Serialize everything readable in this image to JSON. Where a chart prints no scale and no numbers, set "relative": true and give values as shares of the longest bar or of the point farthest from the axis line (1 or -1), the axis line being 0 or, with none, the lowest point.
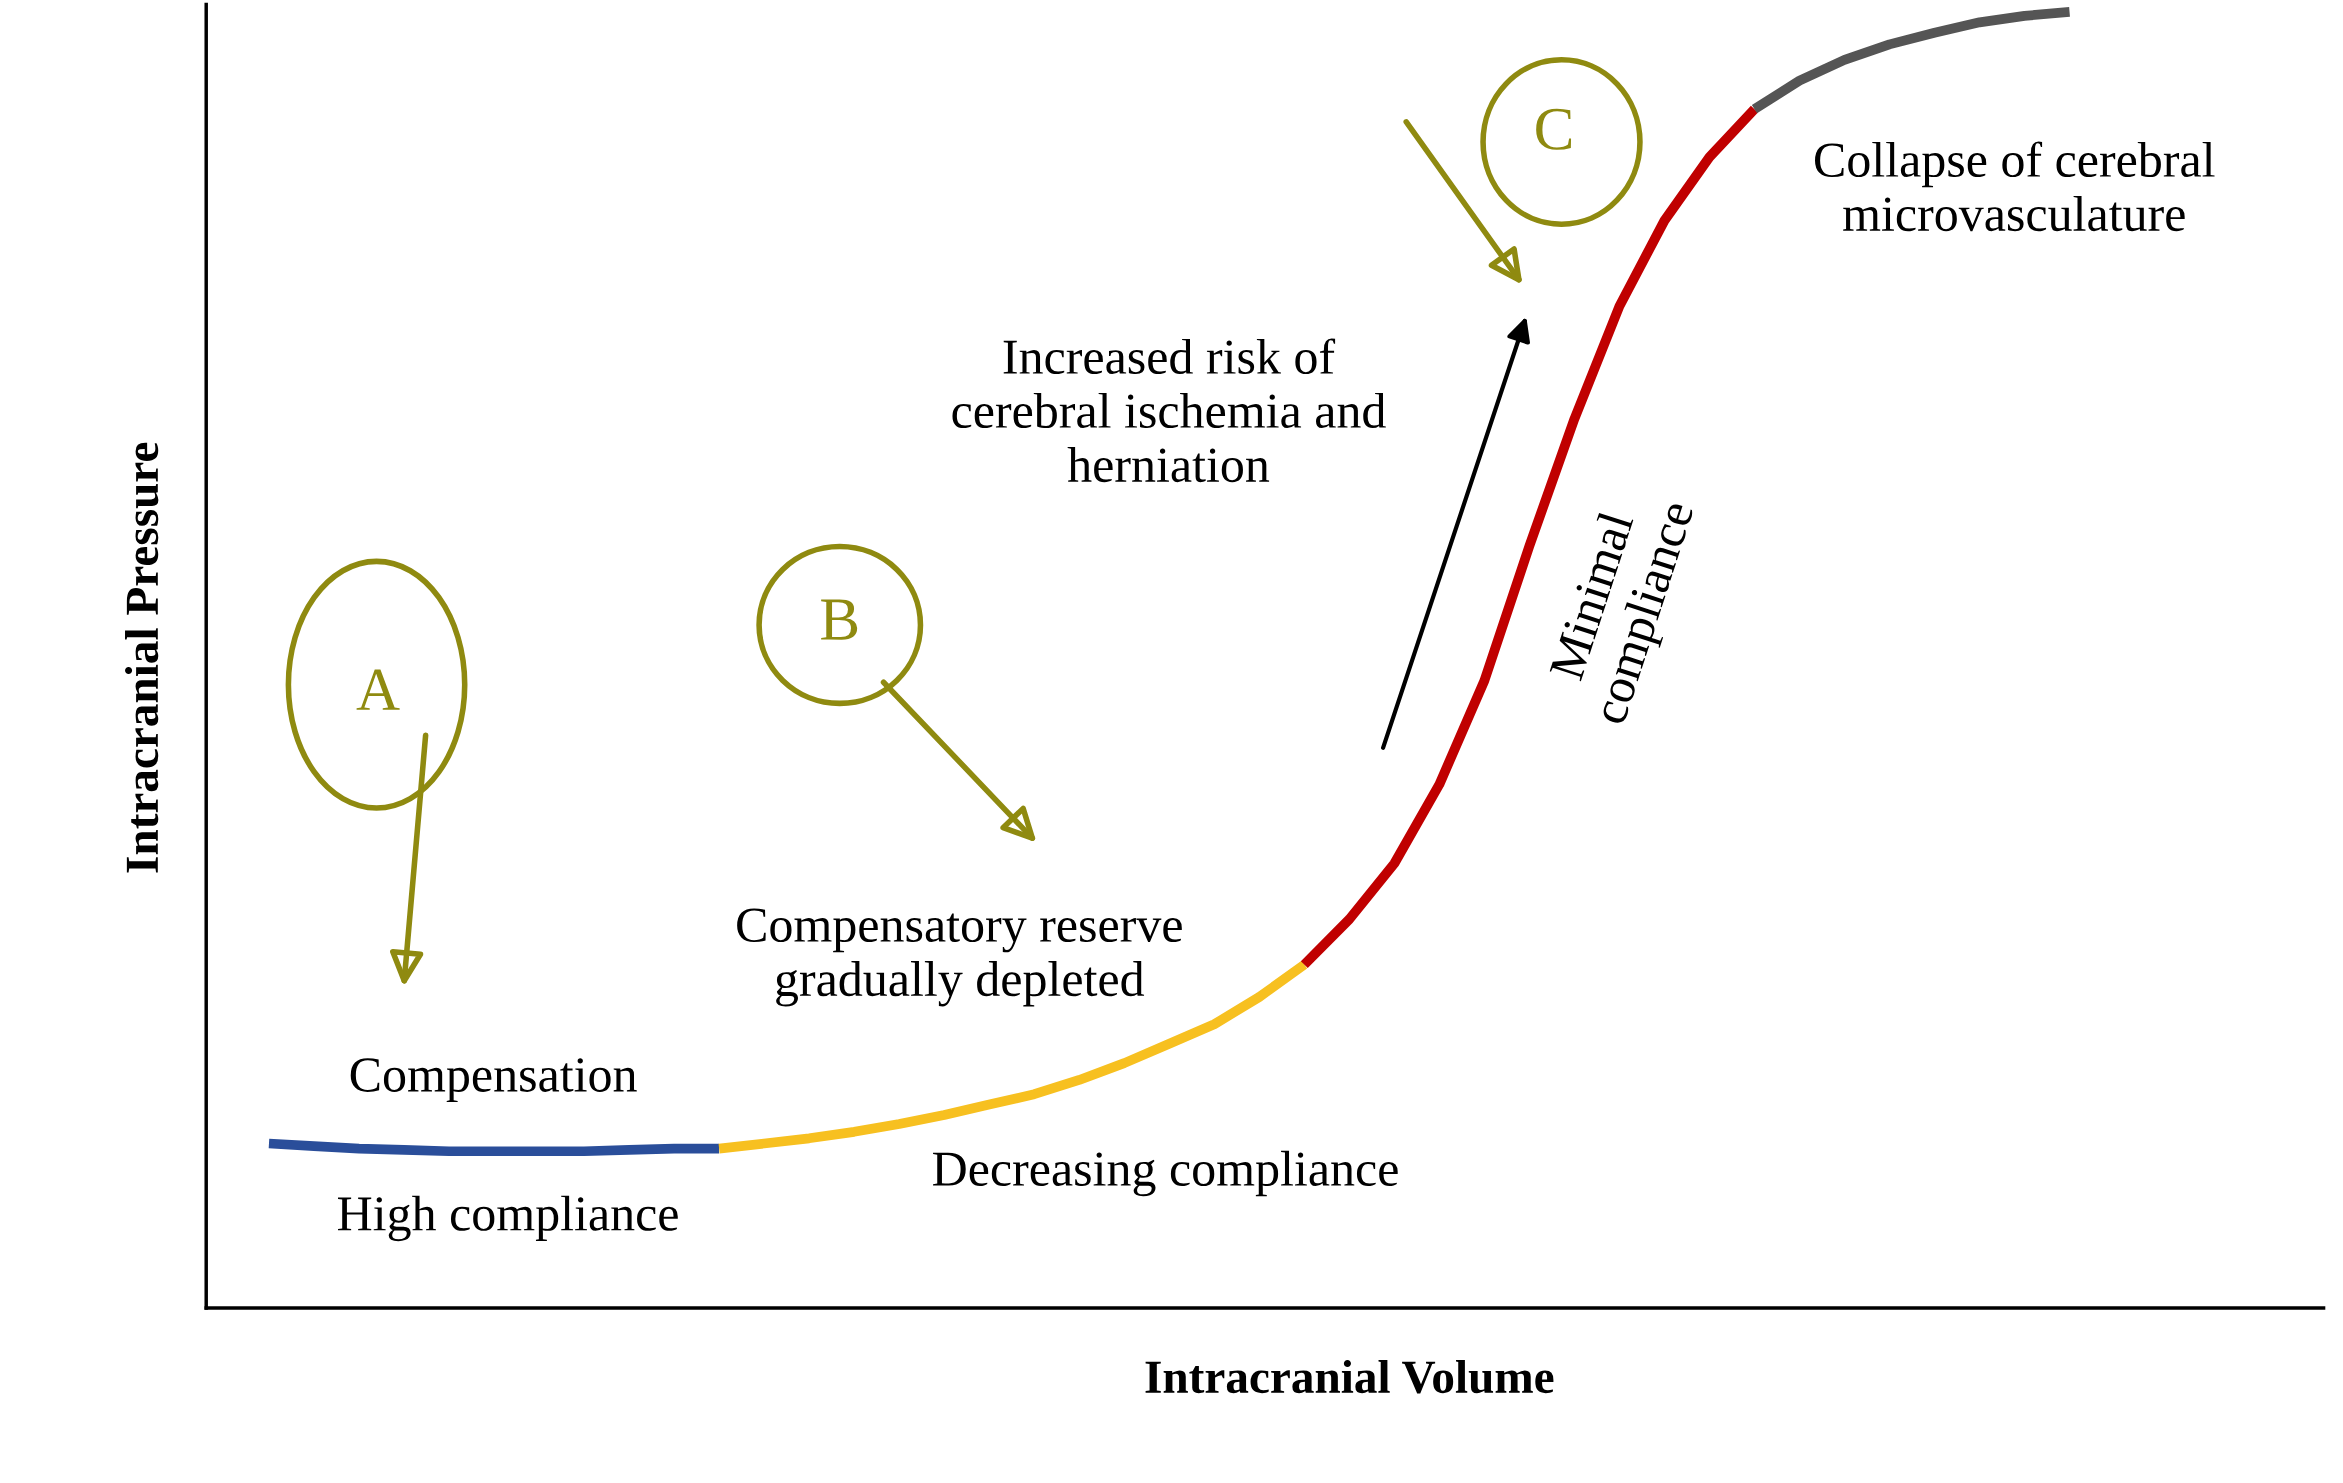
{
  "chart_data": {
    "type": "line",
    "relative": true,
    "xlabel": "Intracranial Volume",
    "ylabel": "Intracranial Pressure",
    "categories": [
      null,
      null,
      null,
      null,
      null,
      null,
      null,
      null,
      null,
      null,
      null,
      null,
      null,
      null,
      null,
      null,
      null,
      null,
      null,
      null,
      null,
      null,
      null,
      null,
      null,
      null,
      null,
      null,
      null,
      null,
      null,
      null,
      null,
      null,
      null,
      null,
      null,
      null,
      null,
      null,
      null
    ],
    "series": [
      {
        "color": "#2a4e9a",
        "values": [
          0.127,
          0.125,
          0.123,
          0.122,
          0.121,
          0.121,
          0.121,
          0.121,
          0.122,
          0.123,
          0.123,
          null,
          null,
          null,
          null,
          null,
          null,
          null,
          null,
          null,
          null,
          null,
          null,
          null,
          null,
          null,
          null,
          null,
          null,
          null,
          null,
          null,
          null,
          null,
          null,
          null,
          null,
          null,
          null,
          null,
          null
        ]
      },
      {
        "color": "#f7c020",
        "values": [
          null,
          null,
          null,
          null,
          null,
          null,
          null,
          null,
          null,
          null,
          0.123,
          0.127,
          0.131,
          0.136,
          0.142,
          0.149,
          0.157,
          0.165,
          0.176,
          0.189,
          0.204,
          0.219,
          0.24,
          0.265,
          null,
          null,
          null,
          null,
          null,
          null,
          null,
          null,
          null,
          null,
          null,
          null,
          null,
          null,
          null,
          null,
          null
        ]
      },
      {
        "color": "#c00000",
        "values": [
          null,
          null,
          null,
          null,
          null,
          null,
          null,
          null,
          null,
          null,
          null,
          null,
          null,
          null,
          null,
          null,
          null,
          null,
          null,
          null,
          null,
          null,
          null,
          0.265,
          0.3,
          0.343,
          0.404,
          0.484,
          0.588,
          0.686,
          0.773,
          0.839,
          0.888,
          0.925,
          null,
          null,
          null,
          null,
          null,
          null,
          null
        ]
      },
      {
        "color": "#555555",
        "values": [
          null,
          null,
          null,
          null,
          null,
          null,
          null,
          null,
          null,
          null,
          null,
          null,
          null,
          null,
          null,
          null,
          null,
          null,
          null,
          null,
          null,
          null,
          null,
          null,
          null,
          null,
          null,
          null,
          null,
          null,
          null,
          null,
          null,
          0.925,
          0.947,
          0.963,
          0.975,
          0.984,
          0.992,
          0.997,
          1.0
        ]
      }
    ],
    "annotations": [
      "Compensation",
      "High compliance",
      "Compensatory reserve\ngradually depleted",
      "Decreasing compliance",
      "Increased risk of\ncerebral ischemia and\nherniation",
      "Minimal\ncompliance",
      "Collapse of cerebral\nmicrovasculature",
      "A",
      "B",
      "C"
    ],
    "grid": false,
    "legend": false
  }
}
